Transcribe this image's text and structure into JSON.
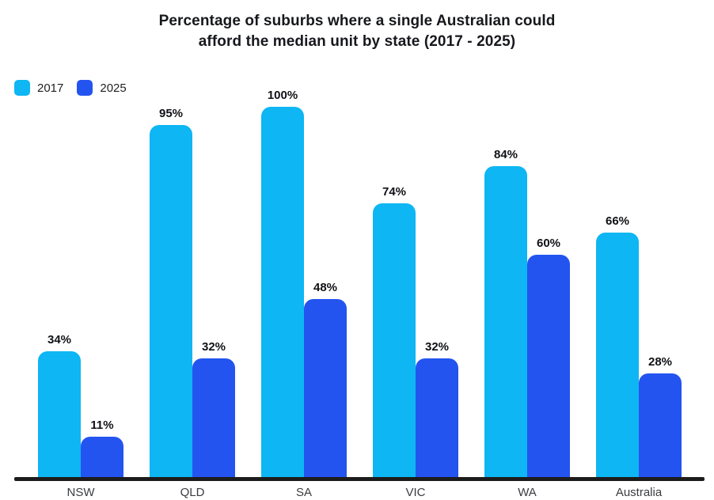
{
  "chart_data": {
    "type": "bar",
    "title": "Percentage of suburbs where a single Australian could afford the median unit by state (2017 - 2025)",
    "title_lines": [
      "Percentage of suburbs where a single Australian could",
      "afford the median unit by state (2017 - 2025)"
    ],
    "categories": [
      "NSW",
      "QLD",
      "SA",
      "VIC",
      "WA",
      "Australia"
    ],
    "series": [
      {
        "name": "2017",
        "color": "#0eb6f3",
        "values": [
          34,
          95,
          100,
          74,
          84,
          66
        ]
      },
      {
        "name": "2025",
        "color": "#2454f0",
        "values": [
          11,
          32,
          48,
          32,
          60,
          28
        ]
      }
    ],
    "value_suffix": "%",
    "ylim": [
      0,
      100
    ],
    "grid": false,
    "legend_position": "top-left",
    "axis_color": "#1c1c1c",
    "xlabel": "",
    "ylabel": ""
  }
}
